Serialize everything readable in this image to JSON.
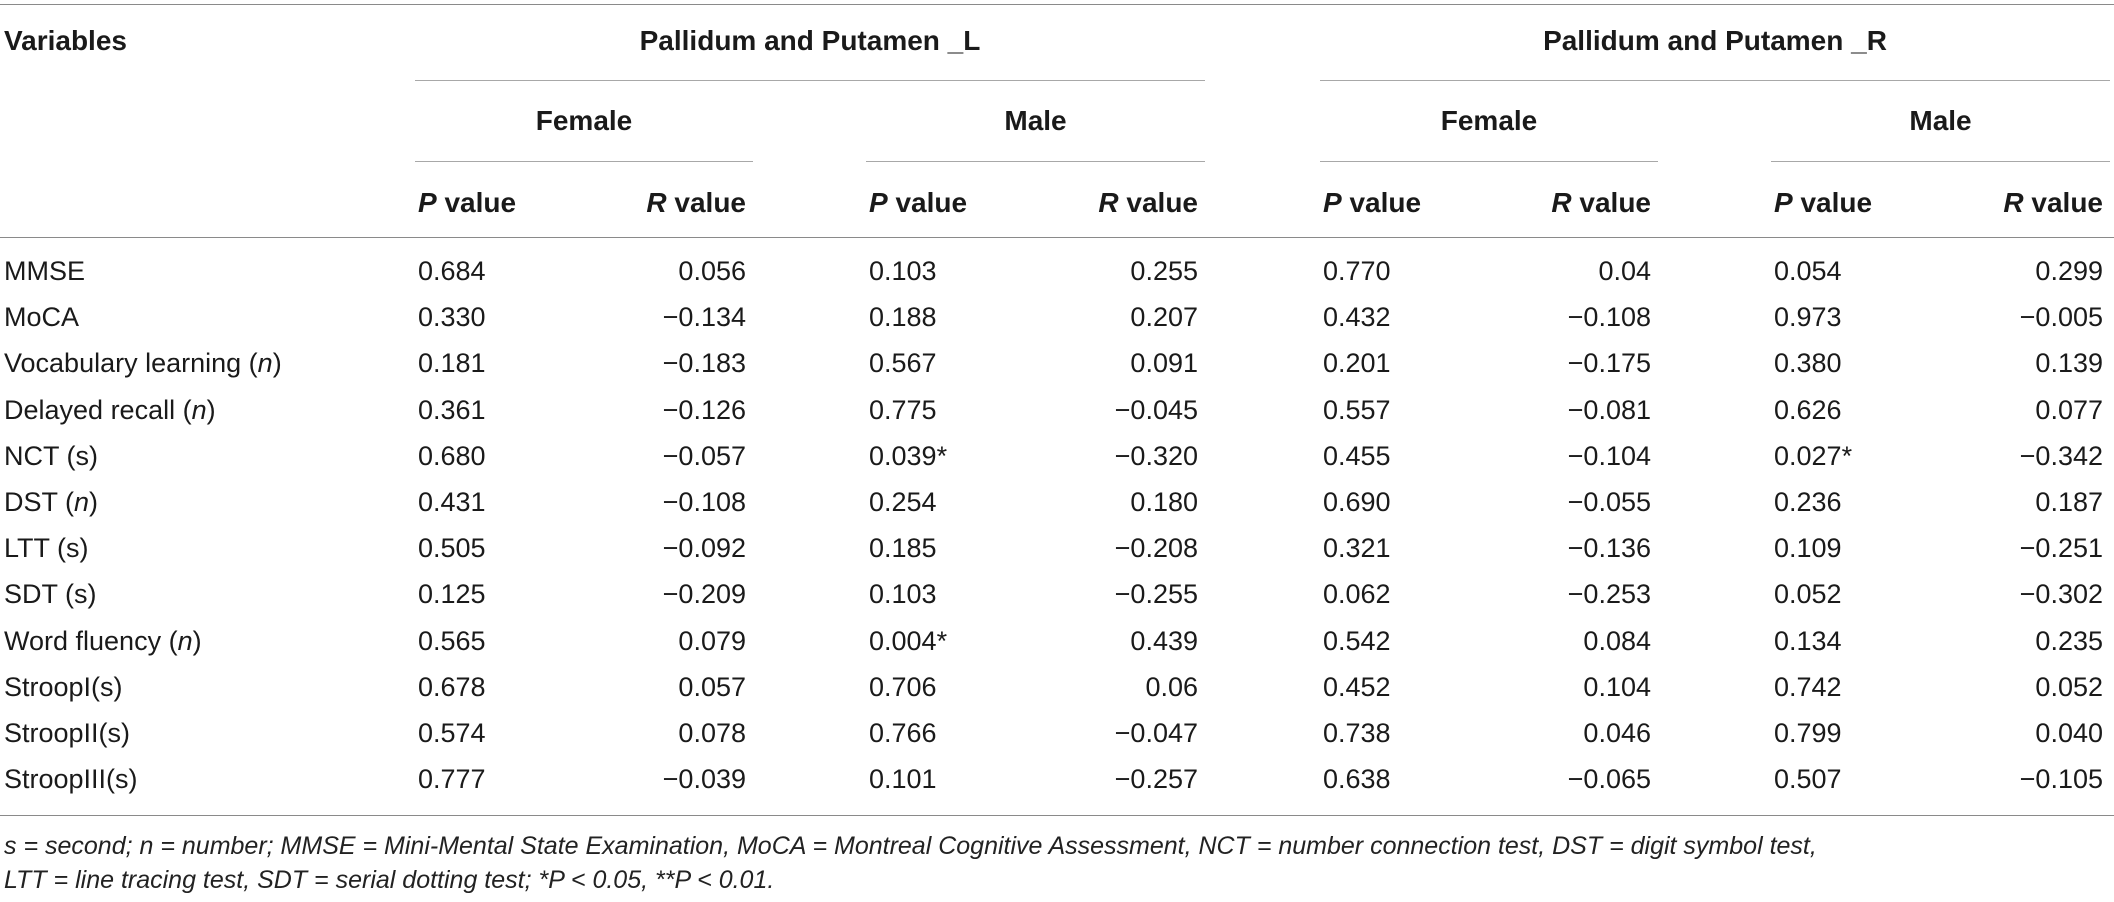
{
  "headers": {
    "variables": "Variables",
    "group_left": "Pallidum and Putamen _L",
    "group_right": "Pallidum and Putamen _R",
    "female": "Female",
    "male": "Male",
    "p_letter": "P",
    "r_letter": "R",
    "value_word": " value"
  },
  "rows": [
    {
      "prefix": "MMSE",
      "unit": "",
      "suffix": "",
      "values": [
        "0.684",
        "0.056",
        "0.103",
        "0.255",
        "0.770",
        "0.04",
        "0.054",
        "0.299"
      ]
    },
    {
      "prefix": "MoCA",
      "unit": "",
      "suffix": "",
      "values": [
        "0.330",
        "−0.134",
        "0.188",
        "0.207",
        "0.432",
        "−0.108",
        "0.973",
        "−0.005"
      ]
    },
    {
      "prefix": "Vocabulary learning (",
      "unit": "n",
      "suffix": ")",
      "values": [
        "0.181",
        "−0.183",
        "0.567",
        "0.091",
        "0.201",
        "−0.175",
        "0.380",
        "0.139"
      ]
    },
    {
      "prefix": "Delayed recall (",
      "unit": "n",
      "suffix": ")",
      "values": [
        "0.361",
        "−0.126",
        "0.775",
        "−0.045",
        "0.557",
        "−0.081",
        "0.626",
        "0.077"
      ]
    },
    {
      "prefix": "NCT (s)",
      "unit": "",
      "suffix": "",
      "values": [
        "0.680",
        "−0.057",
        "0.039*",
        "−0.320",
        "0.455",
        "−0.104",
        "0.027*",
        "−0.342"
      ]
    },
    {
      "prefix": "DST (",
      "unit": "n",
      "suffix": ")",
      "values": [
        "0.431",
        "−0.108",
        "0.254",
        "0.180",
        "0.690",
        "−0.055",
        "0.236",
        "0.187"
      ]
    },
    {
      "prefix": "LTT (s)",
      "unit": "",
      "suffix": "",
      "values": [
        "0.505",
        "−0.092",
        "0.185",
        "−0.208",
        "0.321",
        "−0.136",
        "0.109",
        "−0.251"
      ]
    },
    {
      "prefix": "SDT (s)",
      "unit": "",
      "suffix": "",
      "values": [
        "0.125",
        "−0.209",
        "0.103",
        "−0.255",
        "0.062",
        "−0.253",
        "0.052",
        "−0.302"
      ]
    },
    {
      "prefix": "Word fluency (",
      "unit": "n",
      "suffix": ")",
      "values": [
        "0.565",
        "0.079",
        "0.004*",
        "0.439",
        "0.542",
        "0.084",
        "0.134",
        "0.235"
      ]
    },
    {
      "prefix": "StroopI(s)",
      "unit": "",
      "suffix": "",
      "values": [
        "0.678",
        "0.057",
        "0.706",
        "0.06",
        "0.452",
        "0.104",
        "0.742",
        "0.052"
      ]
    },
    {
      "prefix": "StroopII(s)",
      "unit": "",
      "suffix": "",
      "values": [
        "0.574",
        "0.078",
        "0.766",
        "−0.047",
        "0.738",
        "0.046",
        "0.799",
        "0.040"
      ]
    },
    {
      "prefix": "StroopIII(s)",
      "unit": "",
      "suffix": "",
      "values": [
        "0.777",
        "−0.039",
        "0.101",
        "−0.257",
        "0.638",
        "−0.065",
        "0.507",
        "−0.105"
      ]
    }
  ],
  "footnote": {
    "line1": "s = second; n = number; MMSE = Mini-Mental State Examination, MoCA = Montreal Cognitive Assessment, NCT = number connection test, DST = digit symbol test,",
    "line2": "LTT = line tracing test, SDT = serial dotting test; *P < 0.05, **P < 0.01."
  }
}
